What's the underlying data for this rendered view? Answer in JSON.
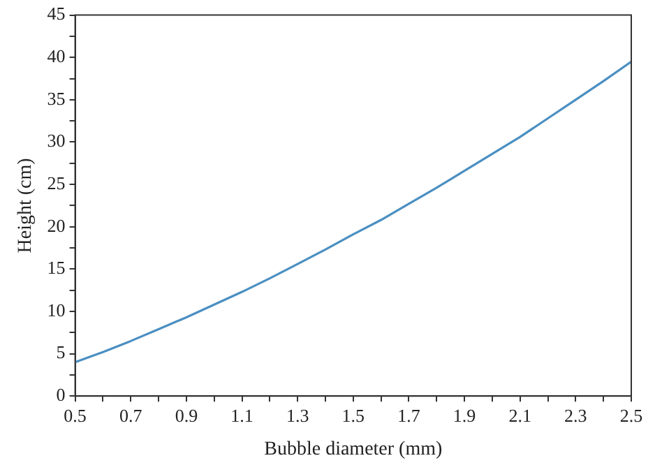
{
  "chart_data": {
    "type": "line",
    "xlabel": "Bubble diameter (mm)",
    "ylabel": "Height (cm)",
    "x": [
      0.5,
      0.6,
      0.7,
      0.8,
      0.9,
      1.0,
      1.1,
      1.2,
      1.3,
      1.4,
      1.5,
      1.6,
      1.7,
      1.8,
      1.9,
      2.0,
      2.1,
      2.2,
      2.3,
      2.4,
      2.5
    ],
    "series": [
      {
        "color": "#4a8fc2",
        "values": [
          4.0,
          5.2,
          6.5,
          7.9,
          9.3,
          10.8,
          12.3,
          13.9,
          15.6,
          17.3,
          19.1,
          20.8,
          22.7,
          24.6,
          26.6,
          28.6,
          30.6,
          32.8,
          35.0,
          37.2,
          39.5
        ]
      }
    ],
    "xlim": [
      0.5,
      2.5
    ],
    "xticks": [
      0.5,
      {
        "value": 0.6,
        "label": null
      },
      0.7,
      {
        "value": 0.8,
        "label": null
      },
      0.9,
      {
        "value": 1.0,
        "label": null
      },
      1.1,
      {
        "value": 1.2,
        "label": null
      },
      1.3,
      {
        "value": 1.4,
        "label": null
      },
      1.5,
      {
        "value": 1.6,
        "label": null
      },
      1.7,
      {
        "value": 1.8,
        "label": null
      },
      1.9,
      {
        "value": 2.0,
        "label": null
      },
      2.1,
      {
        "value": 2.2,
        "label": null
      },
      2.3,
      {
        "value": 2.4,
        "label": null
      },
      2.5
    ],
    "ylim": [
      0,
      45
    ],
    "yticks": [
      0,
      {
        "value": 2.5,
        "label": null
      },
      5,
      {
        "value": 7.5,
        "label": null
      },
      10,
      {
        "value": 12.5,
        "label": null
      },
      15,
      {
        "value": 17.5,
        "label": null
      },
      20,
      {
        "value": 22.5,
        "label": null
      },
      25,
      {
        "value": 27.5,
        "label": null
      },
      30,
      {
        "value": 32.5,
        "label": null
      },
      35,
      {
        "value": 37.5,
        "label": null
      },
      40,
      {
        "value": 42.5,
        "label": null
      },
      45
    ],
    "grid": false,
    "legend": false,
    "marker": "none",
    "line_style": "solid"
  }
}
